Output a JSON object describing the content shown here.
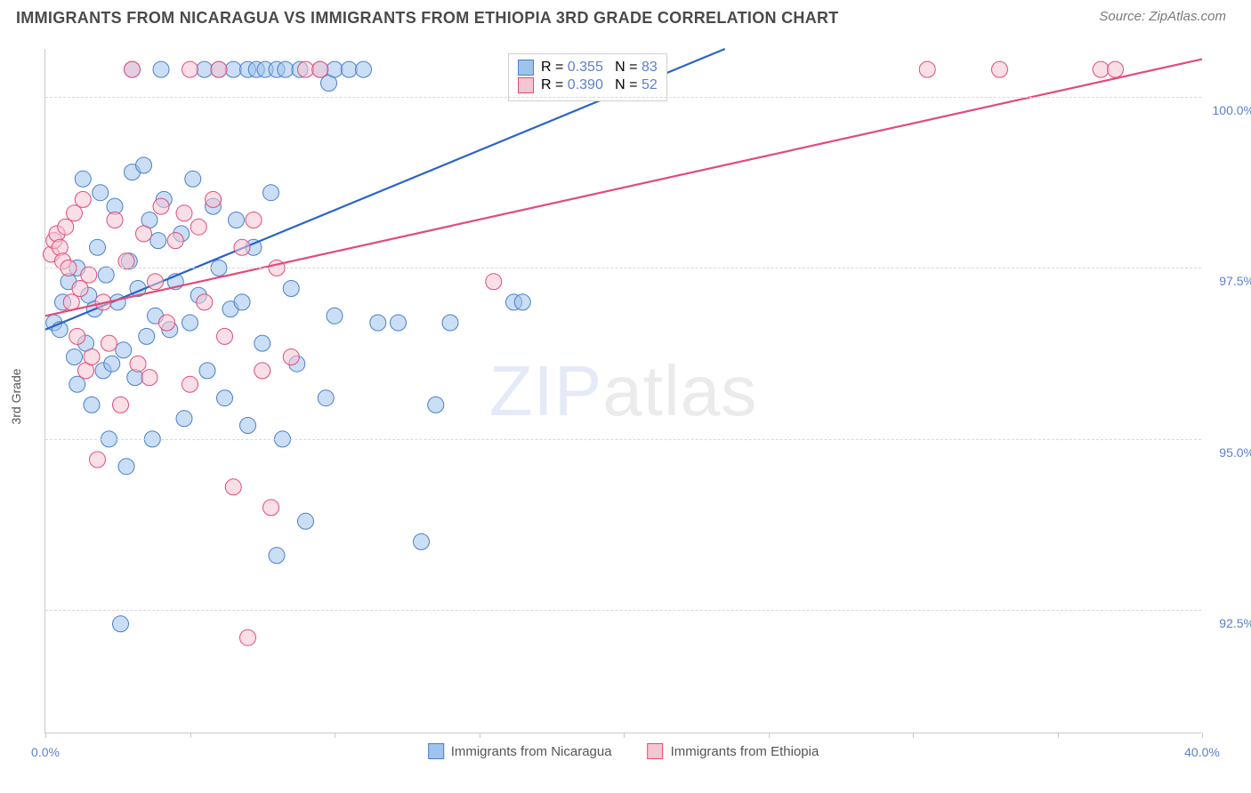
{
  "title": "IMMIGRANTS FROM NICARAGUA VS IMMIGRANTS FROM ETHIOPIA 3RD GRADE CORRELATION CHART",
  "source_label": "Source: ",
  "source_name": "ZipAtlas.com",
  "y_axis_title": "3rd Grade",
  "watermark_bold": "ZIP",
  "watermark_light": "atlas",
  "chart": {
    "type": "scatter",
    "xlim": [
      0,
      40
    ],
    "ylim": [
      90.7,
      100.7
    ],
    "x_ticks": [
      0,
      5,
      10,
      15,
      20,
      25,
      30,
      35,
      40
    ],
    "x_tick_labels": {
      "0": "0.0%",
      "40": "40.0%"
    },
    "y_grid": [
      92.5,
      95.0,
      97.5,
      100.0
    ],
    "y_tick_labels": [
      "92.5%",
      "95.0%",
      "97.5%",
      "100.0%"
    ],
    "background_color": "#ffffff",
    "grid_color": "#d8d8d8",
    "axis_color": "#c9c9c9",
    "tick_label_color": "#5b7fd1",
    "point_radius": 9,
    "point_opacity": 0.55,
    "series": [
      {
        "name": "Immigrants from Nicaragua",
        "color_fill": "#9fc3ec",
        "color_stroke": "#4b7fc8",
        "trend_color": "#2b64c7",
        "R": "0.355",
        "N": "83",
        "trend": {
          "x1": 0,
          "y1": 96.6,
          "x2": 23.5,
          "y2": 100.7
        },
        "points": [
          [
            0.3,
            96.7
          ],
          [
            0.5,
            96.6
          ],
          [
            0.6,
            97.0
          ],
          [
            0.8,
            97.3
          ],
          [
            1.0,
            96.2
          ],
          [
            1.1,
            95.8
          ],
          [
            1.1,
            97.5
          ],
          [
            1.3,
            98.8
          ],
          [
            1.4,
            96.4
          ],
          [
            1.5,
            97.1
          ],
          [
            1.6,
            95.5
          ],
          [
            1.7,
            96.9
          ],
          [
            1.8,
            97.8
          ],
          [
            1.9,
            98.6
          ],
          [
            2.0,
            96.0
          ],
          [
            2.1,
            97.4
          ],
          [
            2.2,
            95.0
          ],
          [
            2.3,
            96.1
          ],
          [
            2.4,
            98.4
          ],
          [
            2.5,
            97.0
          ],
          [
            2.6,
            92.3
          ],
          [
            2.7,
            96.3
          ],
          [
            2.8,
            94.6
          ],
          [
            2.9,
            97.6
          ],
          [
            3.0,
            98.9
          ],
          [
            3.0,
            100.4
          ],
          [
            3.1,
            95.9
          ],
          [
            3.2,
            97.2
          ],
          [
            3.4,
            99.0
          ],
          [
            3.5,
            96.5
          ],
          [
            3.6,
            98.2
          ],
          [
            3.7,
            95.0
          ],
          [
            3.8,
            96.8
          ],
          [
            3.9,
            97.9
          ],
          [
            4.0,
            100.4
          ],
          [
            4.1,
            98.5
          ],
          [
            4.3,
            96.6
          ],
          [
            4.5,
            97.3
          ],
          [
            4.7,
            98.0
          ],
          [
            4.8,
            95.3
          ],
          [
            5.0,
            96.7
          ],
          [
            5.1,
            98.8
          ],
          [
            5.3,
            97.1
          ],
          [
            5.5,
            100.4
          ],
          [
            5.6,
            96.0
          ],
          [
            5.8,
            98.4
          ],
          [
            6.0,
            97.5
          ],
          [
            6.0,
            100.4
          ],
          [
            6.2,
            95.6
          ],
          [
            6.4,
            96.9
          ],
          [
            6.5,
            100.4
          ],
          [
            6.6,
            98.2
          ],
          [
            6.8,
            97.0
          ],
          [
            7.0,
            100.4
          ],
          [
            7.0,
            95.2
          ],
          [
            7.2,
            97.8
          ],
          [
            7.3,
            100.4
          ],
          [
            7.5,
            96.4
          ],
          [
            7.6,
            100.4
          ],
          [
            7.8,
            98.6
          ],
          [
            8.0,
            93.3
          ],
          [
            8.0,
            100.4
          ],
          [
            8.2,
            95.0
          ],
          [
            8.3,
            100.4
          ],
          [
            8.5,
            97.2
          ],
          [
            8.7,
            96.1
          ],
          [
            8.8,
            100.4
          ],
          [
            9.0,
            93.8
          ],
          [
            9.5,
            100.4
          ],
          [
            9.7,
            95.6
          ],
          [
            9.8,
            100.2
          ],
          [
            10.0,
            96.8
          ],
          [
            10.0,
            100.4
          ],
          [
            10.5,
            100.4
          ],
          [
            11.0,
            100.4
          ],
          [
            11.5,
            96.7
          ],
          [
            12.2,
            96.7
          ],
          [
            13.0,
            93.5
          ],
          [
            13.5,
            95.5
          ],
          [
            14.0,
            96.7
          ],
          [
            16.2,
            97.0
          ],
          [
            16.5,
            97.0
          ],
          [
            17.5,
            100.4
          ]
        ]
      },
      {
        "name": "Immigrants from Ethiopia",
        "color_fill": "#f5c5d2",
        "color_stroke": "#e24b78",
        "trend_color": "#e24b78",
        "R": "0.390",
        "N": "52",
        "trend": {
          "x1": 0,
          "y1": 96.8,
          "x2": 40,
          "y2": 100.55
        },
        "points": [
          [
            0.2,
            97.7
          ],
          [
            0.3,
            97.9
          ],
          [
            0.4,
            98.0
          ],
          [
            0.5,
            97.8
          ],
          [
            0.6,
            97.6
          ],
          [
            0.7,
            98.1
          ],
          [
            0.8,
            97.5
          ],
          [
            0.9,
            97.0
          ],
          [
            1.0,
            98.3
          ],
          [
            1.1,
            96.5
          ],
          [
            1.2,
            97.2
          ],
          [
            1.3,
            98.5
          ],
          [
            1.4,
            96.0
          ],
          [
            1.5,
            97.4
          ],
          [
            1.6,
            96.2
          ],
          [
            1.8,
            94.7
          ],
          [
            2.0,
            97.0
          ],
          [
            2.2,
            96.4
          ],
          [
            2.4,
            98.2
          ],
          [
            2.6,
            95.5
          ],
          [
            2.8,
            97.6
          ],
          [
            3.0,
            100.4
          ],
          [
            3.2,
            96.1
          ],
          [
            3.4,
            98.0
          ],
          [
            3.6,
            95.9
          ],
          [
            3.8,
            97.3
          ],
          [
            4.0,
            98.4
          ],
          [
            4.2,
            96.7
          ],
          [
            4.5,
            97.9
          ],
          [
            4.8,
            98.3
          ],
          [
            5.0,
            95.8
          ],
          [
            5.0,
            100.4
          ],
          [
            5.3,
            98.1
          ],
          [
            5.5,
            97.0
          ],
          [
            5.8,
            98.5
          ],
          [
            6.0,
            100.4
          ],
          [
            6.2,
            96.5
          ],
          [
            6.5,
            94.3
          ],
          [
            6.8,
            97.8
          ],
          [
            7.0,
            92.1
          ],
          [
            7.2,
            98.2
          ],
          [
            7.5,
            96.0
          ],
          [
            7.8,
            94.0
          ],
          [
            8.0,
            97.5
          ],
          [
            8.5,
            96.2
          ],
          [
            9.0,
            100.4
          ],
          [
            9.5,
            100.4
          ],
          [
            15.5,
            97.3
          ],
          [
            30.5,
            100.4
          ],
          [
            33.0,
            100.4
          ],
          [
            36.5,
            100.4
          ],
          [
            37.0,
            100.4
          ]
        ]
      }
    ]
  },
  "legend_box": {
    "r_prefix": "R = ",
    "n_prefix": "N = "
  },
  "series_legend_labels": [
    "Immigrants from Nicaragua",
    "Immigrants from Ethiopia"
  ]
}
